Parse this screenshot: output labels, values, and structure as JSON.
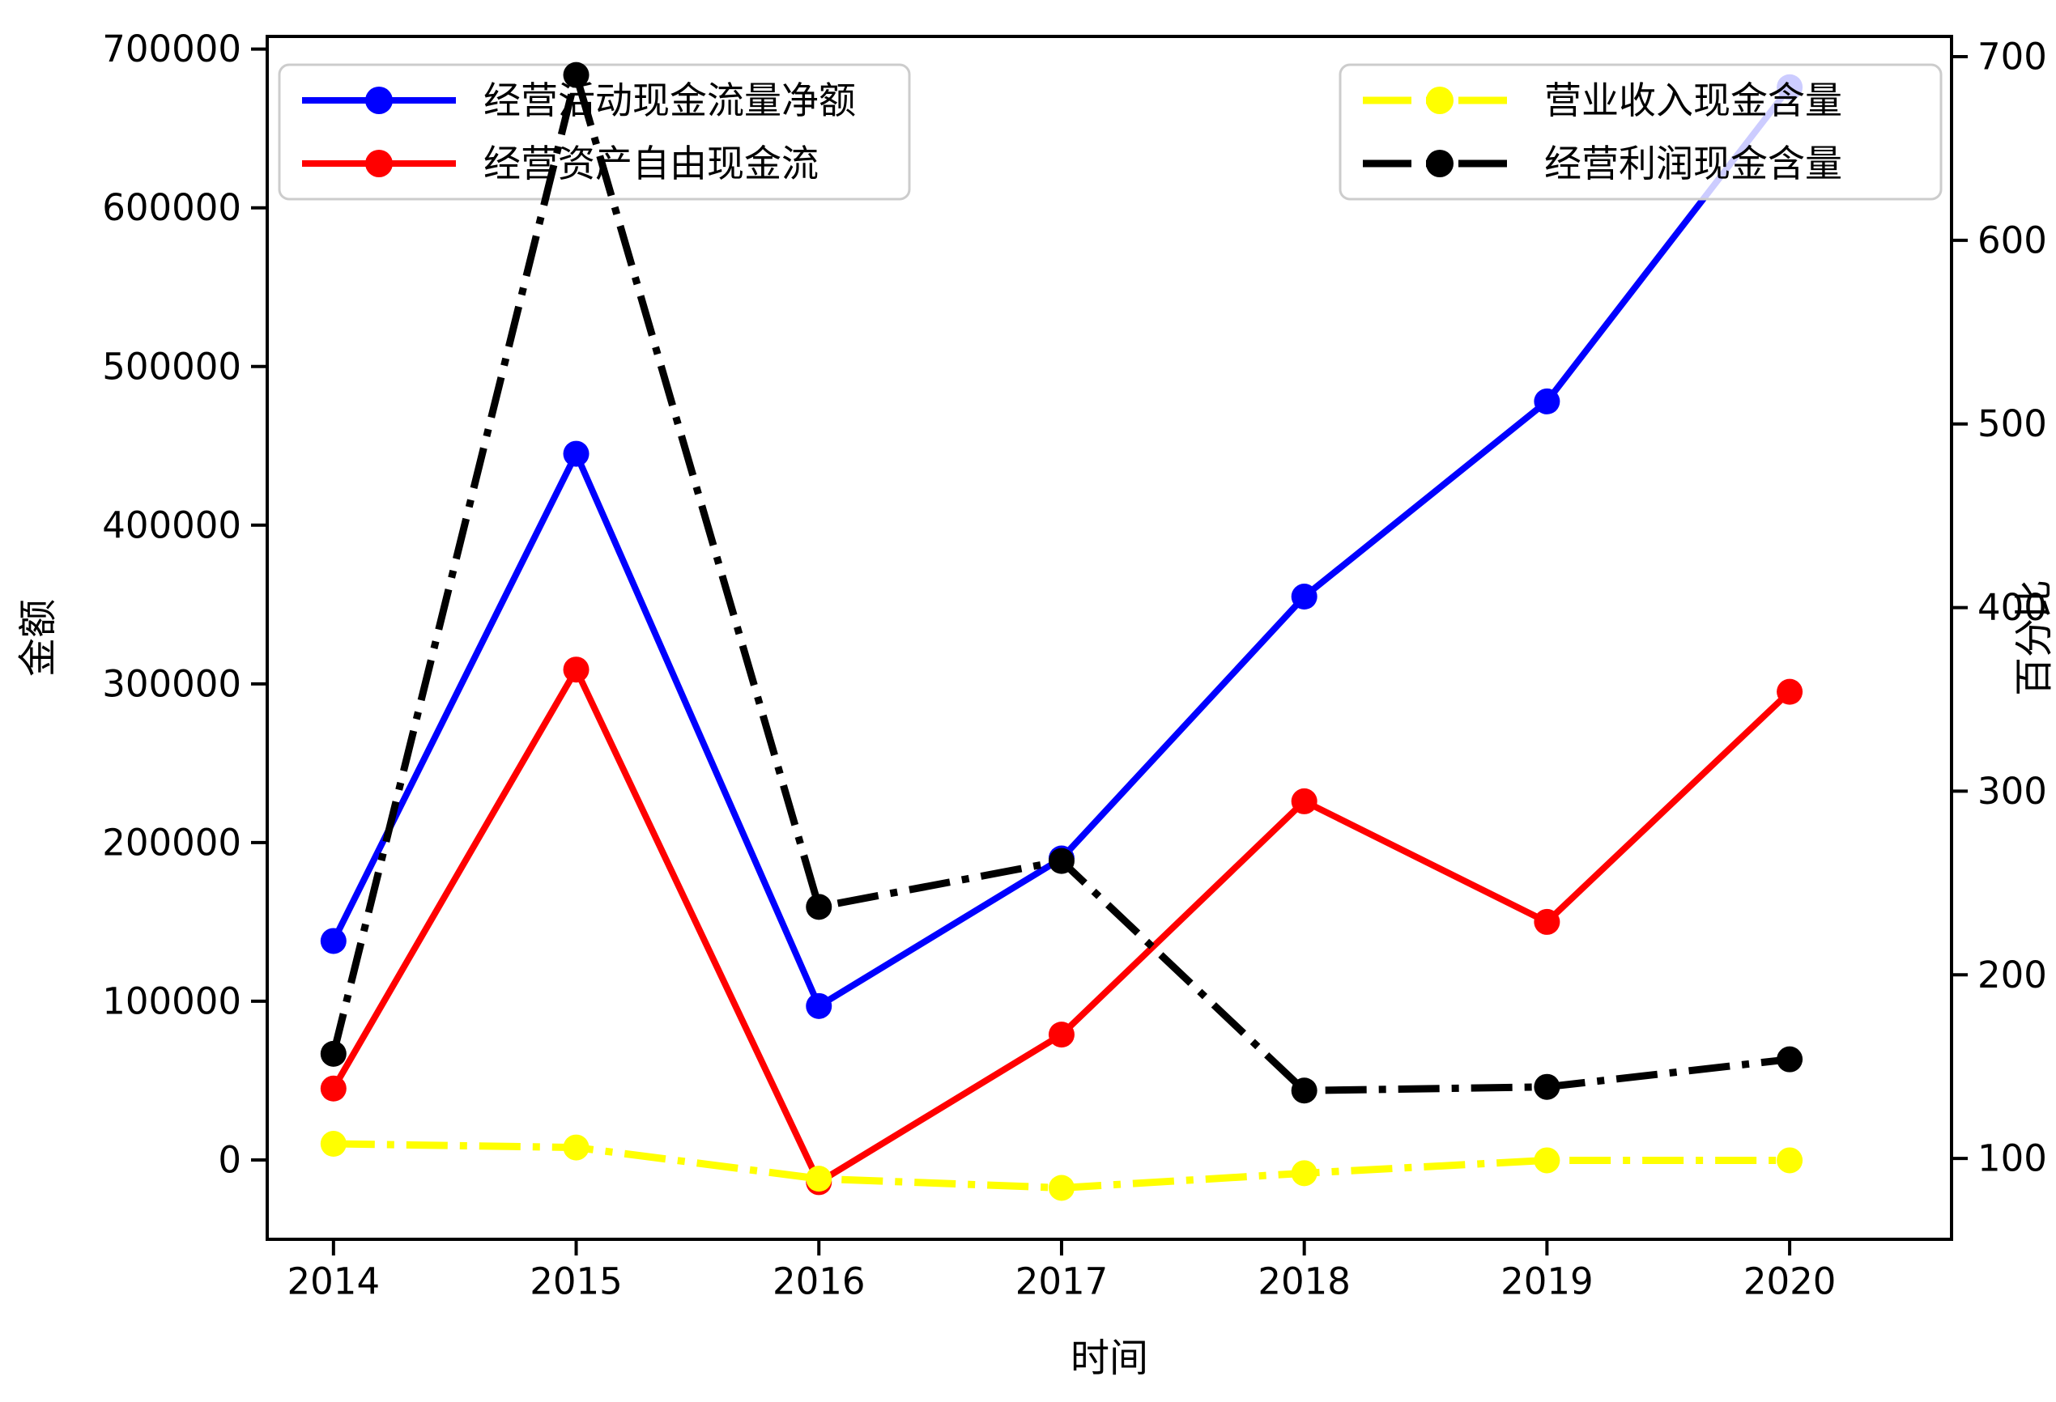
{
  "chart_data": {
    "type": "line",
    "title": "",
    "xlabel": "时间",
    "ylabel_left": "金额",
    "ylabel_right": "百分比",
    "grid": false,
    "categories": [
      2014,
      2015,
      2016,
      2017,
      2018,
      2019,
      2020
    ],
    "x_tick_labels": [
      "2014",
      "2015",
      "2016",
      "2017",
      "2018",
      "2019",
      "2020"
    ],
    "left_axis": {
      "label": "金额",
      "ticks": [
        0,
        100000,
        200000,
        300000,
        400000,
        500000,
        600000,
        700000
      ],
      "lim": [
        -50000,
        708000
      ]
    },
    "right_axis": {
      "label": "百分比",
      "ticks": [
        100,
        200,
        300,
        400,
        500,
        600,
        700
      ],
      "lim": [
        56,
        711
      ]
    },
    "x_lim": [
      2013.727,
      2020.667
    ],
    "series": [
      {
        "name": "经营活动现金流量净额",
        "color": "#0000ff",
        "axis": "left",
        "linestyle": "solid",
        "marker": "circle",
        "values": [
          138000,
          445000,
          97000,
          190000,
          355000,
          478000,
          676000
        ]
      },
      {
        "name": "经营资产自由现金流",
        "color": "#ff0000",
        "axis": "left",
        "linestyle": "solid",
        "marker": "circle",
        "values": [
          45000,
          309000,
          -14000,
          79000,
          226000,
          150000,
          295000
        ]
      },
      {
        "name": "营业收入现金含量",
        "color": "#ffff00",
        "axis": "right",
        "linestyle": "dashdot",
        "marker": "circle",
        "values": [
          108,
          106,
          89,
          84,
          92,
          99,
          99
        ]
      },
      {
        "name": "经营利润现金含量",
        "color": "#000000",
        "axis": "right",
        "linestyle": "dashdot",
        "marker": "circle",
        "values": [
          157,
          690,
          237,
          262,
          137,
          139,
          154
        ]
      }
    ],
    "legends": [
      {
        "position": "upper-left",
        "entries": [
          "经营活动现金流量净额",
          "经营资产自由现金流"
        ]
      },
      {
        "position": "upper-right",
        "entries": [
          "营业收入现金含量",
          "经营利润现金含量"
        ]
      }
    ],
    "legend_frame_color": "#cccccc",
    "background_color": "#ffffff"
  }
}
